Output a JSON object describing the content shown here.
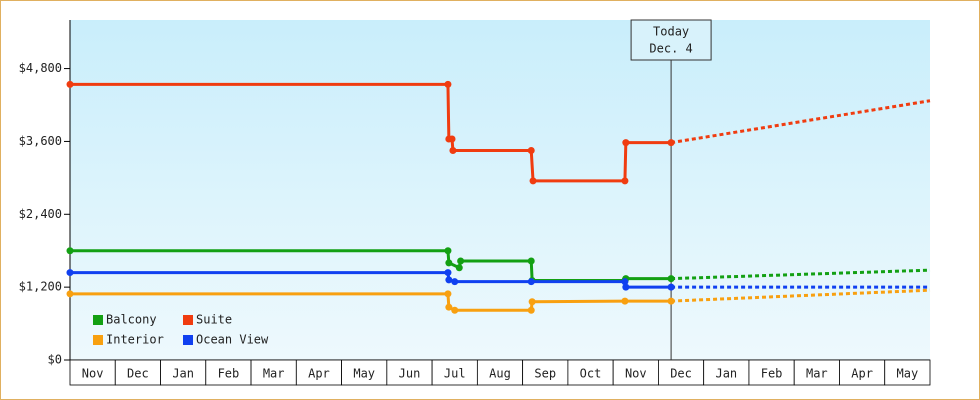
{
  "chart_data": {
    "type": "line",
    "categories": [
      "Nov",
      "Dec",
      "Jan",
      "Feb",
      "Mar",
      "Apr",
      "May",
      "Jun",
      "Jul",
      "Aug",
      "Sep",
      "Oct",
      "Nov",
      "Dec",
      "Jan",
      "Feb",
      "Mar",
      "Apr",
      "May"
    ],
    "xlim": [
      0,
      19
    ],
    "ylim": [
      0,
      5600
    ],
    "yticks": [
      {
        "value": 0,
        "label": "$0"
      },
      {
        "value": 1200,
        "label": "$1,200"
      },
      {
        "value": 2400,
        "label": "$2,400"
      },
      {
        "value": 3600,
        "label": "$3,600"
      },
      {
        "value": 4800,
        "label": "$4,800"
      }
    ],
    "annotation": {
      "x": 13.28,
      "lines": [
        "Today",
        "Dec. 4"
      ]
    },
    "series": [
      {
        "name": "Balcony",
        "color": "#13a013",
        "x": [
          0,
          8.35,
          8.37,
          8.6,
          8.63,
          10.19,
          10.21,
          12.26,
          12.28,
          13.28
        ],
        "values": [
          1800,
          1800,
          1600,
          1520,
          1630,
          1630,
          1310,
          1310,
          1340,
          1340
        ],
        "forecast": {
          "x": [
            13.28,
            19
          ],
          "values": [
            1340,
            1480
          ]
        }
      },
      {
        "name": "Suite",
        "color": "#f03c10",
        "x": [
          0,
          8.35,
          8.37,
          8.44,
          8.46,
          10.19,
          10.23,
          12.26,
          12.28,
          13.28
        ],
        "values": [
          4540,
          4540,
          3640,
          3640,
          3450,
          3450,
          2950,
          2950,
          3580,
          3580
        ],
        "forecast": {
          "x": [
            13.28,
            19
          ],
          "values": [
            3580,
            4270
          ]
        }
      },
      {
        "name": "Interior",
        "color": "#f8a010",
        "x": [
          0,
          8.35,
          8.37,
          8.5,
          10.19,
          10.21,
          12.26,
          13.28
        ],
        "values": [
          1090,
          1090,
          870,
          820,
          820,
          960,
          970,
          970
        ],
        "forecast": {
          "x": [
            13.28,
            19
          ],
          "values": [
            970,
            1150
          ]
        }
      },
      {
        "name": "Ocean View",
        "color": "#1040f0",
        "x": [
          0,
          8.35,
          8.37,
          8.5,
          10.19,
          12.26,
          12.28,
          13.28
        ],
        "values": [
          1440,
          1440,
          1320,
          1290,
          1290,
          1290,
          1200,
          1200
        ],
        "forecast": {
          "x": [
            13.28,
            19
          ],
          "values": [
            1200,
            1200
          ]
        }
      }
    ]
  }
}
